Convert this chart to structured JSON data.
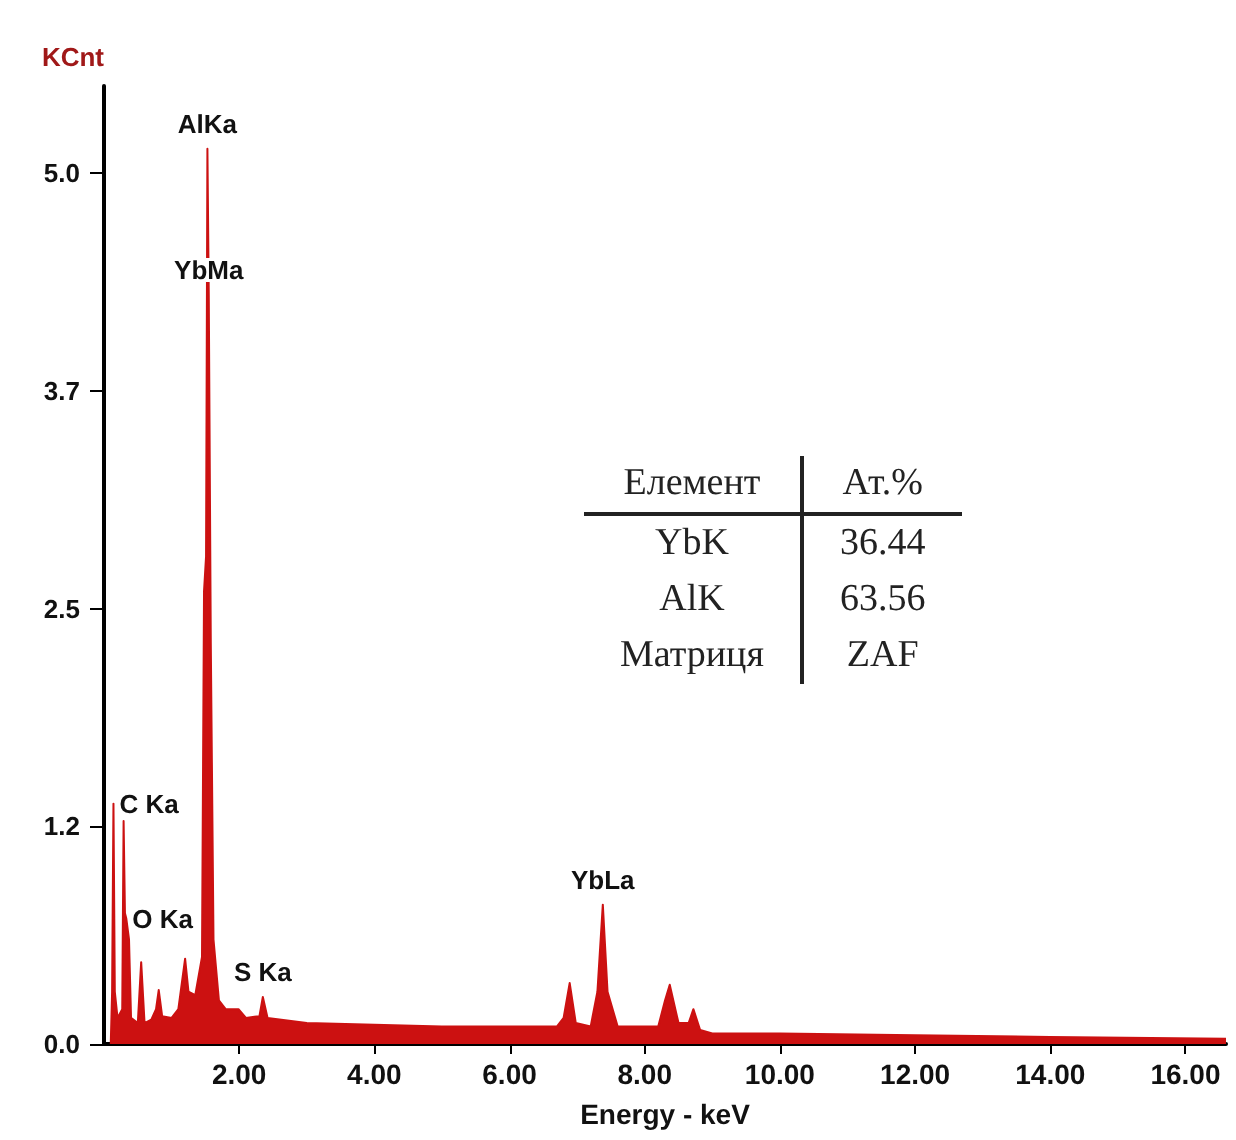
{
  "chart_data": {
    "type": "area",
    "xlabel": "Energy - keV",
    "ylabel": "KCnt",
    "x": [
      0.1,
      0.12,
      0.14,
      0.16,
      0.2,
      0.27,
      0.29,
      0.31,
      0.33,
      0.37,
      0.4,
      0.5,
      0.55,
      0.6,
      0.7,
      0.77,
      0.81,
      0.86,
      1.0,
      1.1,
      1.2,
      1.25,
      1.35,
      1.45,
      1.48,
      1.51,
      1.53,
      1.55,
      1.58,
      1.62,
      1.7,
      1.8,
      1.99,
      2.1,
      2.3,
      2.35,
      2.42,
      3.0,
      4.0,
      5.0,
      6.0,
      6.7,
      6.8,
      6.89,
      6.98,
      7.2,
      7.3,
      7.38,
      7.45,
      7.6,
      8.2,
      8.3,
      8.37,
      8.5,
      8.65,
      8.72,
      8.82,
      9.0,
      10.0,
      12.0,
      14.0,
      16.6
    ],
    "series": [
      {
        "color": "#cc1111",
        "values": [
          0,
          0.3,
          1.38,
          0.3,
          0.15,
          0.2,
          1.28,
          0.75,
          0.72,
          0.6,
          0.15,
          0.12,
          0.47,
          0.12,
          0.14,
          0.2,
          0.31,
          0.16,
          0.15,
          0.2,
          0.49,
          0.3,
          0.28,
          0.5,
          2.6,
          2.8,
          5.14,
          4.3,
          2.3,
          0.6,
          0.25,
          0.2,
          0.2,
          0.15,
          0.16,
          0.27,
          0.15,
          0.12,
          0.11,
          0.1,
          0.1,
          0.1,
          0.15,
          0.35,
          0.12,
          0.1,
          0.3,
          0.8,
          0.3,
          0.1,
          0.1,
          0.25,
          0.34,
          0.12,
          0.12,
          0.2,
          0.08,
          0.06,
          0.06,
          0.05,
          0.04,
          0.03
        ]
      }
    ],
    "xlim": [
      0,
      16.6
    ],
    "xticks": [
      {
        "value": 2,
        "label": "2.00"
      },
      {
        "value": 4,
        "label": "4.00"
      },
      {
        "value": 6,
        "label": "6.00"
      },
      {
        "value": 8,
        "label": "8.00"
      },
      {
        "value": 10,
        "label": "10.00"
      },
      {
        "value": 12,
        "label": "12.00"
      },
      {
        "value": 14,
        "label": "14.00"
      },
      {
        "value": 16,
        "label": "16.00"
      }
    ],
    "ylim": [
      0,
      5.5
    ],
    "yticks": [
      {
        "value": 0,
        "label": "0.0"
      },
      {
        "value": 1.25,
        "label": "1.2"
      },
      {
        "value": 2.5,
        "label": "2.5"
      },
      {
        "value": 3.75,
        "label": "3.7"
      },
      {
        "value": 5,
        "label": "5.0"
      }
    ],
    "annotations": [
      {
        "text": "AlKa",
        "x": 1.53,
        "y": 5.14
      },
      {
        "text": "YbMa",
        "x": 1.55,
        "y": 4.3
      },
      {
        "text": "C Ka",
        "x": 0.14,
        "y": 1.38
      },
      {
        "text": "O Ka",
        "x": 0.33,
        "y": 0.72
      },
      {
        "text": "S Ka",
        "x": 2.35,
        "y": 0.27
      },
      {
        "text": "YbLa",
        "x": 7.38,
        "y": 0.8
      },
      "Елемент",
      "Ат.%",
      "YbK",
      "36.44",
      "AlK",
      "63.56",
      "Матриця",
      "ZAF"
    ]
  }
}
